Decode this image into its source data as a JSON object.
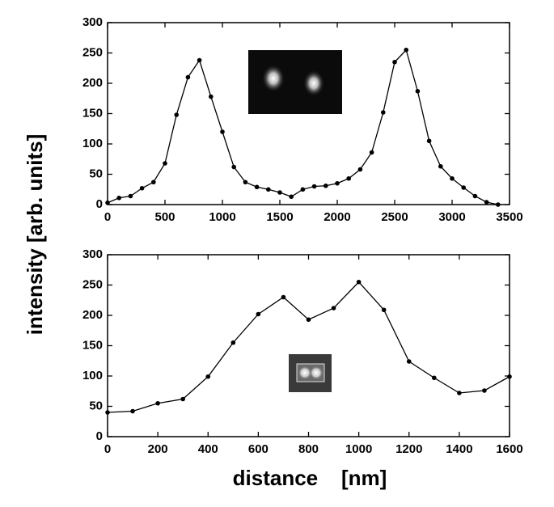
{
  "chart_data": [
    {
      "type": "line",
      "ylabel": "intensity     [arb. units]",
      "x": [
        0,
        100,
        200,
        300,
        400,
        500,
        600,
        700,
        800,
        900,
        1000,
        1100,
        1200,
        1300,
        1400,
        1500,
        1600,
        1700,
        1800,
        1900,
        2000,
        2100,
        2200,
        2300,
        2400,
        2500,
        2600,
        2700,
        2800,
        2900,
        3000,
        3100,
        3200,
        3300,
        3400
      ],
      "series": [
        {
          "color": "#000000",
          "values": [
            3,
            11,
            14,
            27,
            37,
            68,
            148,
            210,
            238,
            178,
            120,
            62,
            37,
            29,
            25,
            20,
            13,
            25,
            30,
            31,
            35,
            43,
            58,
            86,
            152,
            235,
            255,
            187,
            105,
            63,
            43,
            28,
            14,
            4,
            0
          ]
        }
      ],
      "xlim": [
        0,
        3500
      ],
      "xticks": [
        0,
        500,
        1000,
        1500,
        2000,
        2500,
        3000,
        3500
      ],
      "ylim": [
        0,
        300
      ],
      "yticks": [
        0,
        50,
        100,
        150,
        200,
        250,
        300
      ]
    },
    {
      "type": "line",
      "xlabel": "distance    [nm]",
      "x": [
        0,
        100,
        200,
        300,
        400,
        500,
        600,
        700,
        800,
        900,
        1000,
        1100,
        1200,
        1300,
        1400,
        1500,
        1600
      ],
      "series": [
        {
          "color": "#000000",
          "values": [
            40,
            42,
            55,
            62,
            99,
            155,
            202,
            230,
            193,
            212,
            255,
            209,
            124,
            97,
            72,
            76,
            99
          ]
        }
      ],
      "xlim": [
        0,
        1600
      ],
      "xticks": [
        0,
        200,
        400,
        600,
        800,
        1000,
        1200,
        1400,
        1600
      ],
      "ylim": [
        0,
        300
      ],
      "yticks": [
        0,
        50,
        100,
        150,
        200,
        250,
        300
      ]
    }
  ]
}
